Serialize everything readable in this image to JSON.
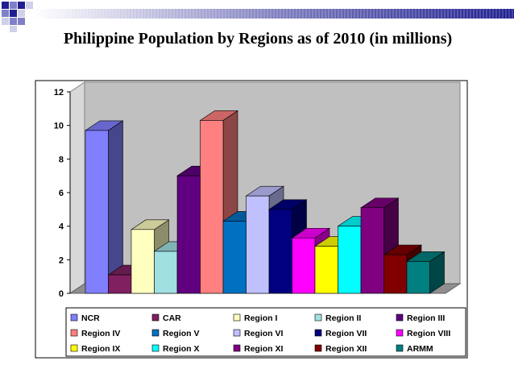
{
  "title": "Philippine Population by Regions as of 2010 (in millions)",
  "colors": {
    "header_blue": "#1F1F8F",
    "plot_wall": "#C0C0C0",
    "plot_floor": "#8E8E8E"
  },
  "chart_data": {
    "type": "bar",
    "title": "Philippine Population by Regions as of 2010 (in millions)",
    "xlabel": "",
    "ylabel": "",
    "ylim": [
      0,
      12
    ],
    "yticks": [
      0,
      2,
      4,
      6,
      8,
      10,
      12
    ],
    "grid": false,
    "legend_position": "bottom",
    "series": [
      {
        "name": "NCR",
        "value": 9.7,
        "color": "#8080FF"
      },
      {
        "name": "CAR",
        "value": 1.1,
        "color": "#802060"
      },
      {
        "name": "Region I",
        "value": 3.8,
        "color": "#FFFFC0"
      },
      {
        "name": "Region II",
        "value": 2.5,
        "color": "#A0E0E0"
      },
      {
        "name": "Region III",
        "value": 7.0,
        "color": "#600080"
      },
      {
        "name": "Region IV",
        "value": 10.3,
        "color": "#FF8080"
      },
      {
        "name": "Region V",
        "value": 4.3,
        "color": "#0070C0"
      },
      {
        "name": "Region VI",
        "value": 5.8,
        "color": "#C0C0FF"
      },
      {
        "name": "Region VII",
        "value": 5.0,
        "color": "#000080"
      },
      {
        "name": "Region VIII",
        "value": 3.3,
        "color": "#FF00FF"
      },
      {
        "name": "Region IX",
        "value": 2.8,
        "color": "#FFFF00"
      },
      {
        "name": "Region X",
        "value": 4.0,
        "color": "#00FFFF"
      },
      {
        "name": "Region XI",
        "value": 5.1,
        "color": "#800080"
      },
      {
        "name": "Region XII",
        "value": 2.3,
        "color": "#800000"
      },
      {
        "name": "ARMM",
        "value": 1.9,
        "color": "#008080"
      }
    ]
  }
}
